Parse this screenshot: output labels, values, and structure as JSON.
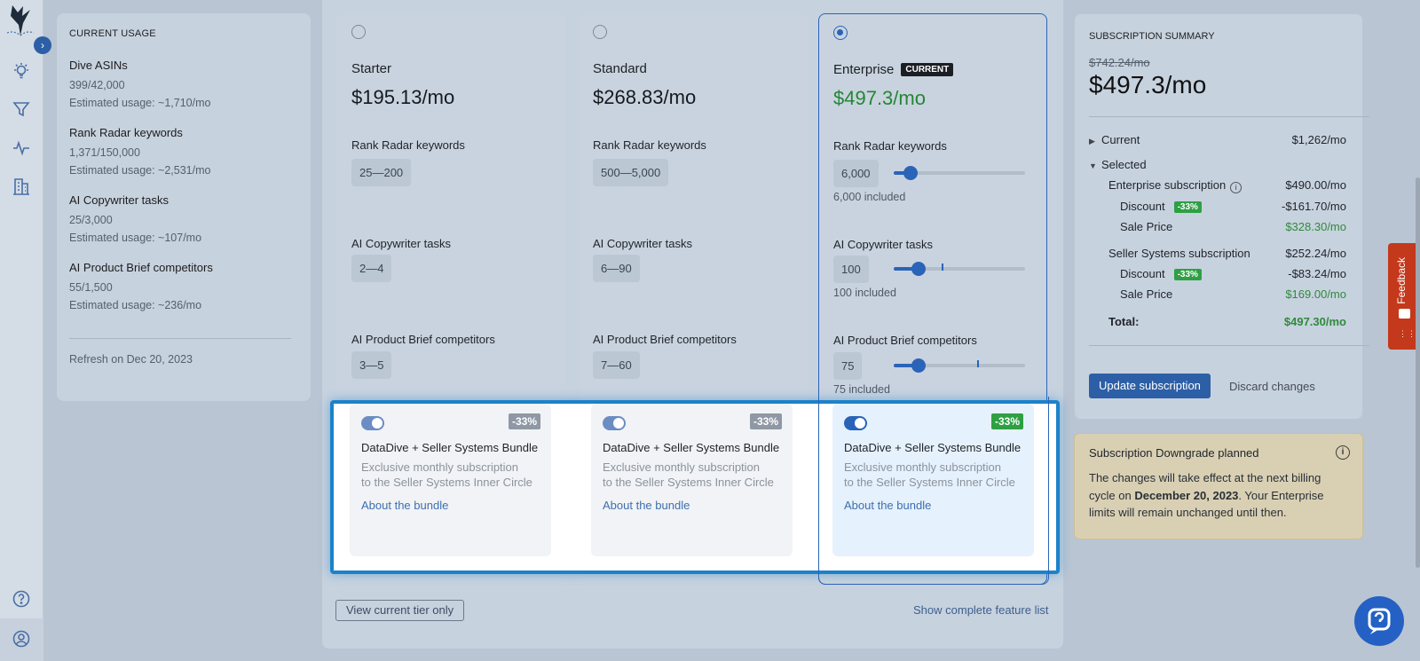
{
  "sidebar": {
    "icons": [
      "lightbulb-icon",
      "filter-icon",
      "activity-icon",
      "building-icon",
      "help-icon",
      "account-icon"
    ]
  },
  "usage": {
    "header": "CURRENT USAGE",
    "items": [
      {
        "title": "Dive ASINs",
        "value": "399/42,000",
        "estimate": "Estimated usage: ~1,710/mo"
      },
      {
        "title": "Rank Radar keywords",
        "value": "1,371/150,000",
        "estimate": "Estimated usage: ~2,531/mo"
      },
      {
        "title": "AI Copywriter tasks",
        "value": "25/3,000",
        "estimate": "Estimated usage: ~107/mo"
      },
      {
        "title": "AI Product Brief competitors",
        "value": "55/1,500",
        "estimate": "Estimated usage: ~236/mo"
      }
    ],
    "refresh": "Refresh on Dec 20, 2023"
  },
  "plans": [
    {
      "name": "Starter",
      "price": "$195.13/mo",
      "selected": false,
      "features": [
        {
          "title": "Rank Radar keywords",
          "range": "25—200"
        },
        {
          "title": "AI Copywriter tasks",
          "range": "2—4"
        },
        {
          "title": "AI Product Brief competitors",
          "range": "3—5"
        }
      ]
    },
    {
      "name": "Standard",
      "price": "$268.83/mo",
      "selected": false,
      "features": [
        {
          "title": "Rank Radar keywords",
          "range": "500—5,000"
        },
        {
          "title": "AI Copywriter tasks",
          "range": "6—90"
        },
        {
          "title": "AI Product Brief competitors",
          "range": "7—60"
        }
      ]
    },
    {
      "name": "Enterprise",
      "badge": "CURRENT",
      "price": "$497.3/mo",
      "selected": true,
      "features": [
        {
          "title": "Rank Radar keywords",
          "value": "6,000",
          "included": "6,000 included",
          "slider_level": 0.13
        },
        {
          "title": "AI Copywriter tasks",
          "value": "100",
          "included": "100 included",
          "slider_level": 0.19
        },
        {
          "title": "AI Product Brief competitors",
          "value": "75",
          "included": "75 included",
          "slider_level": 0.19
        }
      ]
    }
  ],
  "bundle": {
    "discount": "-33%",
    "title": "DataDive + Seller Systems Bundle",
    "desc1": "Exclusive monthly subscription",
    "desc2": "to the Seller Systems Inner Circle",
    "link": "About the bundle"
  },
  "view_current": "View current tier only",
  "show_list": "Show complete feature list",
  "summary": {
    "header": "SUBSCRIPTION SUMMARY",
    "old_price": "$742.24/mo",
    "new_price": "$497.3/mo",
    "current_label": "Current",
    "current_value": "$1,262/mo",
    "selected_label": "Selected",
    "ent_label": "Enterprise subscription",
    "ent_value": "$490.00/mo",
    "discount_label": "Discount",
    "discount_badge": "-33%",
    "ent_discount": "-$161.70/mo",
    "sale_label": "Sale Price",
    "ent_sale": "$328.30/mo",
    "ss_label": "Seller Systems subscription",
    "ss_value": "$252.24/mo",
    "ss_discount": "-$83.24/mo",
    "ss_sale": "$169.00/mo",
    "total_label": "Total:",
    "total_value": "$497.30/mo",
    "update": "Update subscription",
    "discard": "Discard changes"
  },
  "notice": {
    "title": "Subscription Downgrade planned",
    "text_a": "The changes will take effect at the next billing cycle on",
    "date": "December 20, 2023",
    "text_b": ". Your Enterprise limits will remain unchanged until then."
  },
  "feedback": "Feedback",
  "colors": {
    "accent": "#2a64b8",
    "green": "#238636",
    "highlight": "#1c82c9",
    "feedback": "#c4381b"
  }
}
